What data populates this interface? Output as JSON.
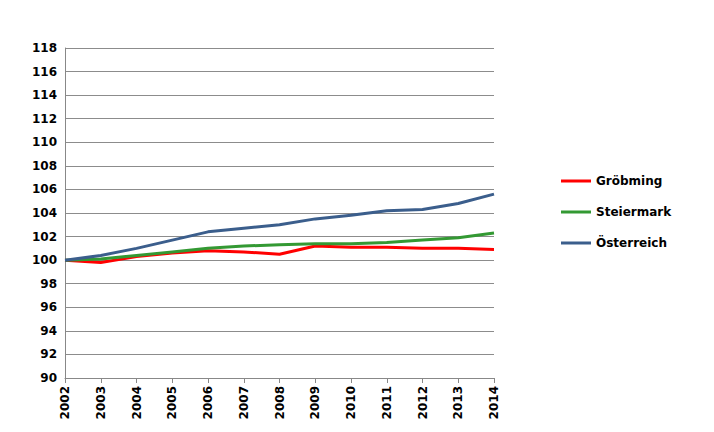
{
  "chart_data": {
    "type": "line",
    "categories": [
      "2002",
      "2003",
      "2004",
      "2005",
      "2006",
      "2007",
      "2008",
      "2009",
      "2010",
      "2011",
      "2012",
      "2013",
      "2014"
    ],
    "series": [
      {
        "name": "Gröbming",
        "color": "#ff0000",
        "values": [
          100,
          99.8,
          100.3,
          100.6,
          100.8,
          100.7,
          100.5,
          101.2,
          101.1,
          101.1,
          101.0,
          101.0,
          100.9
        ]
      },
      {
        "name": "Steiermark",
        "color": "#339933",
        "values": [
          100,
          100.1,
          100.4,
          100.7,
          101.0,
          101.2,
          101.3,
          101.4,
          101.4,
          101.5,
          101.7,
          101.9,
          102.3
        ]
      },
      {
        "name": "Österreich",
        "color": "#3b5e8c",
        "values": [
          100,
          100.4,
          101.0,
          101.7,
          102.4,
          102.7,
          103.0,
          103.5,
          103.8,
          104.2,
          104.3,
          104.8,
          105.6
        ]
      }
    ],
    "ylim": [
      90,
      118
    ],
    "yticks": [
      90,
      92,
      94,
      96,
      98,
      100,
      102,
      104,
      106,
      108,
      110,
      112,
      114,
      116,
      118
    ],
    "grid": true,
    "legend": "right"
  }
}
